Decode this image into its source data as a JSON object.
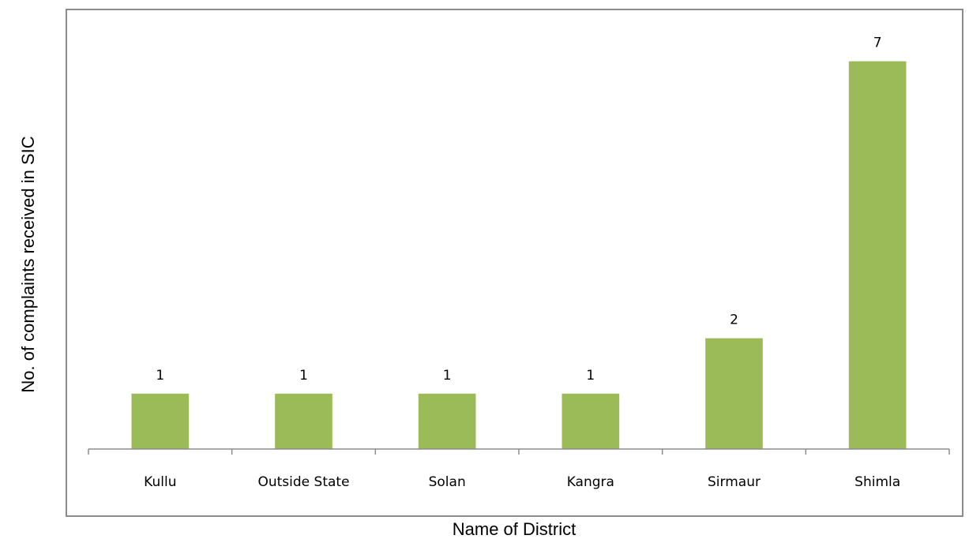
{
  "chart_data": {
    "type": "bar",
    "categories": [
      "Kullu",
      "Outside State",
      "Solan",
      "Kangra",
      "Sirmaur",
      "Shimla"
    ],
    "values": [
      1,
      1,
      1,
      1,
      2,
      7
    ],
    "xlabel": "Name of District",
    "ylabel": "No. of complaints received in SIC",
    "ylim": [
      0,
      7.75
    ],
    "grid": false,
    "bar_color": "#9BBB59",
    "data_labels": [
      "1",
      "1",
      "1",
      "1",
      "2",
      "7"
    ]
  }
}
